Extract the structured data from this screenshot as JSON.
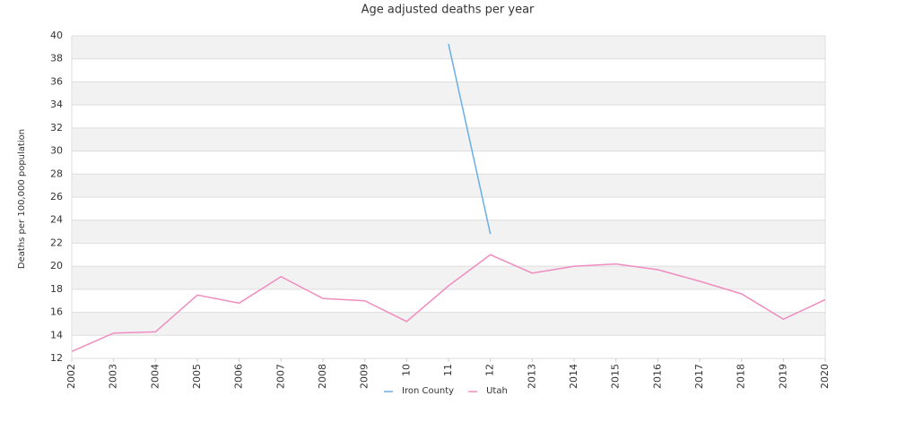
{
  "chart_data": {
    "type": "line",
    "title": "Age adjusted deaths per year",
    "y_label": "Deaths per 100,000 population",
    "categories": [
      "2002",
      "2003",
      "2004",
      "2005",
      "2006",
      "2007",
      "2008",
      "2009",
      "10",
      "11",
      "12",
      "2013",
      "2014",
      "2015",
      "2016",
      "2017",
      "2018",
      "2019",
      "2020"
    ],
    "series": [
      {
        "name": "Iron County",
        "color": "#6aaee8",
        "values": [
          null,
          null,
          null,
          null,
          null,
          null,
          null,
          null,
          null,
          39.3,
          22.8,
          null,
          null,
          null,
          null,
          null,
          null,
          null,
          null
        ]
      },
      {
        "name": "Utah",
        "color": "#f08dc0",
        "values": [
          12.6,
          14.2,
          14.3,
          17.5,
          16.8,
          19.1,
          17.2,
          17.0,
          15.2,
          18.3,
          21.0,
          19.4,
          20.0,
          20.2,
          19.7,
          18.7,
          17.6,
          15.4,
          17.1
        ]
      }
    ],
    "ylim": [
      12,
      40
    ],
    "yticks": [
      12,
      14,
      16,
      18,
      20,
      22,
      24,
      26,
      28,
      30,
      32,
      34,
      36,
      38,
      40
    ],
    "grid": true
  }
}
